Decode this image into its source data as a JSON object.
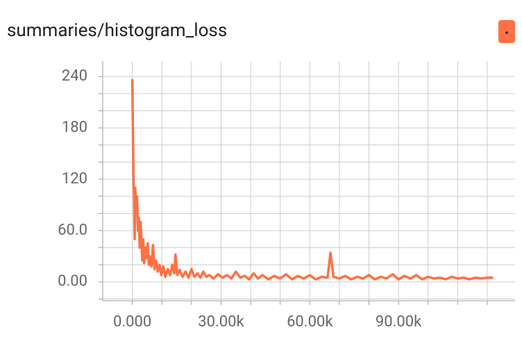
{
  "chart_data": {
    "type": "line",
    "title": "summaries/histogram_loss",
    "color": "#ff7043",
    "x": [
      0,
      200,
      400,
      600,
      800,
      1000,
      1300,
      1600,
      1900,
      2200,
      2500,
      2800,
      3100,
      3400,
      3700,
      4000,
      4400,
      4800,
      5200,
      5600,
      6000,
      6500,
      7000,
      7500,
      8000,
      8600,
      9200,
      9800,
      10500,
      11200,
      12000,
      12800,
      13500,
      14200,
      14600,
      15200,
      16000,
      17000,
      18000,
      19000,
      20000,
      21000,
      22000,
      23000,
      24000,
      25000,
      26000,
      27500,
      29000,
      30500,
      32000,
      33500,
      35000,
      36500,
      38000,
      39500,
      41000,
      42500,
      44000,
      46000,
      48000,
      50000,
      52000,
      54000,
      56000,
      58000,
      60000,
      62000,
      64000,
      66000,
      67000,
      67500,
      68000,
      70000,
      72000,
      74000,
      76000,
      78000,
      80000,
      82000,
      84000,
      86000,
      88000,
      90000,
      92000,
      94000,
      96000,
      98000,
      100000,
      102000,
      104000,
      106000,
      108000,
      110000,
      112000,
      114000,
      116000,
      118000,
      120000,
      122000
    ],
    "values": [
      237,
      180,
      120,
      100,
      50,
      110,
      80,
      100,
      60,
      75,
      40,
      70,
      45,
      25,
      50,
      22,
      40,
      28,
      45,
      20,
      30,
      18,
      43,
      15,
      25,
      12,
      20,
      8,
      18,
      6,
      15,
      8,
      20,
      10,
      32,
      8,
      14,
      6,
      12,
      5,
      15,
      6,
      10,
      5,
      12,
      6,
      8,
      4,
      9,
      5,
      8,
      4,
      12,
      5,
      7,
      3,
      10,
      4,
      8,
      3,
      7,
      4,
      9,
      3,
      7,
      4,
      8,
      3,
      6,
      5,
      34,
      20,
      6,
      4,
      7,
      3,
      6,
      4,
      8,
      3,
      6,
      4,
      9,
      3,
      7,
      4,
      8,
      3,
      6,
      4,
      5,
      3,
      6,
      4,
      5,
      3,
      5,
      4,
      5,
      5
    ],
    "xlim": [
      -10000,
      129400
    ],
    "ylim": [
      -22,
      258
    ],
    "xticks": [
      {
        "value": 0,
        "label": "0.000"
      },
      {
        "value": 30000,
        "label": "30.00k"
      },
      {
        "value": 60000,
        "label": "60.00k"
      },
      {
        "value": 90000,
        "label": "90.00k"
      }
    ],
    "yticks": [
      {
        "value": 0,
        "label": "0.00"
      },
      {
        "value": 60,
        "label": "60.0"
      },
      120,
      180,
      240
    ],
    "x_minor_ticks": [
      0,
      10000,
      20000,
      30000,
      40000,
      50000,
      60000,
      70000,
      80000,
      90000,
      100000,
      110000,
      120000
    ],
    "y_minor_ticks": [
      -20,
      0,
      20,
      40,
      60,
      80,
      100,
      120,
      140,
      160,
      180,
      200,
      220,
      240
    ],
    "grid": true
  }
}
